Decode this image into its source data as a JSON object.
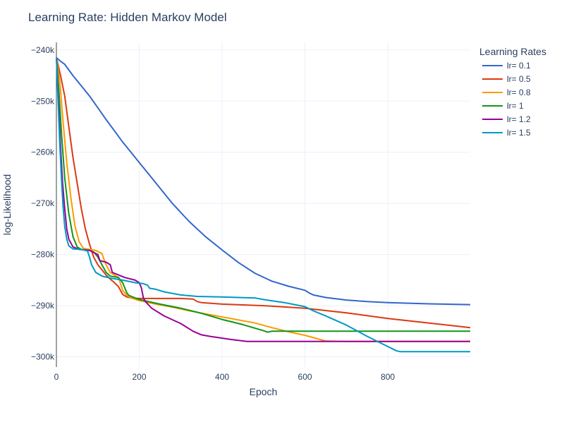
{
  "chart_data": {
    "type": "line",
    "title": "Learning Rate: Hidden Markov Model",
    "xlabel": "Epoch",
    "ylabel": "log-Likelihood",
    "xlim": [
      0,
      999
    ],
    "ylim": [
      -302000,
      -238500
    ],
    "x_ticks": [
      0,
      200,
      400,
      600,
      800
    ],
    "x_tick_labels": [
      "0",
      "200",
      "400",
      "600",
      "800"
    ],
    "y_ticks": [
      -240000,
      -250000,
      -260000,
      -270000,
      -280000,
      -290000,
      -300000
    ],
    "y_tick_labels": [
      "−240k",
      "−250k",
      "−260k",
      "−270k",
      "−280k",
      "−290k",
      "−300k"
    ],
    "grid": true,
    "legend": {
      "title": "Learning Rates",
      "position": "top-right-outside"
    },
    "series": [
      {
        "name": "lr= 0.1",
        "color": "#3366cc",
        "points": [
          [
            0,
            -241500
          ],
          [
            10,
            -242200
          ],
          [
            20,
            -242800
          ],
          [
            40,
            -245000
          ],
          [
            60,
            -247000
          ],
          [
            80,
            -249000
          ],
          [
            100,
            -251300
          ],
          [
            120,
            -253600
          ],
          [
            140,
            -255800
          ],
          [
            160,
            -258000
          ],
          [
            180,
            -260000
          ],
          [
            200,
            -262000
          ],
          [
            220,
            -264000
          ],
          [
            250,
            -267000
          ],
          [
            280,
            -270000
          ],
          [
            320,
            -273500
          ],
          [
            360,
            -276500
          ],
          [
            400,
            -279100
          ],
          [
            440,
            -281600
          ],
          [
            480,
            -283700
          ],
          [
            520,
            -285200
          ],
          [
            560,
            -286200
          ],
          [
            600,
            -287000
          ],
          [
            610,
            -287500
          ],
          [
            620,
            -287900
          ],
          [
            650,
            -288400
          ],
          [
            700,
            -288900
          ],
          [
            750,
            -289200
          ],
          [
            800,
            -289400
          ],
          [
            900,
            -289650
          ],
          [
            999,
            -289800
          ]
        ]
      },
      {
        "name": "lr= 0.5",
        "color": "#dc3912",
        "points": [
          [
            0,
            -241500
          ],
          [
            10,
            -245000
          ],
          [
            20,
            -249000
          ],
          [
            30,
            -255000
          ],
          [
            40,
            -261000
          ],
          [
            50,
            -266000
          ],
          [
            60,
            -271000
          ],
          [
            70,
            -275000
          ],
          [
            80,
            -278000
          ],
          [
            90,
            -280500
          ],
          [
            100,
            -282000
          ],
          [
            110,
            -283000
          ],
          [
            120,
            -284000
          ],
          [
            130,
            -284800
          ],
          [
            140,
            -285500
          ],
          [
            150,
            -286300
          ],
          [
            160,
            -287800
          ],
          [
            170,
            -288300
          ],
          [
            180,
            -288500
          ],
          [
            200,
            -288600
          ],
          [
            250,
            -288600
          ],
          [
            300,
            -288600
          ],
          [
            330,
            -288700
          ],
          [
            340,
            -289200
          ],
          [
            350,
            -289400
          ],
          [
            400,
            -289700
          ],
          [
            500,
            -290000
          ],
          [
            600,
            -290500
          ],
          [
            700,
            -291400
          ],
          [
            800,
            -292500
          ],
          [
            900,
            -293400
          ],
          [
            999,
            -294300
          ]
        ]
      },
      {
        "name": "lr= 0.8",
        "color": "#ff9900",
        "points": [
          [
            0,
            -241500
          ],
          [
            8,
            -246000
          ],
          [
            15,
            -253000
          ],
          [
            25,
            -262000
          ],
          [
            35,
            -269000
          ],
          [
            45,
            -274500
          ],
          [
            55,
            -277500
          ],
          [
            65,
            -278800
          ],
          [
            80,
            -279000
          ],
          [
            95,
            -279200
          ],
          [
            110,
            -279800
          ],
          [
            115,
            -281000
          ],
          [
            120,
            -282000
          ],
          [
            130,
            -283500
          ],
          [
            140,
            -284000
          ],
          [
            150,
            -284500
          ],
          [
            160,
            -287000
          ],
          [
            170,
            -288000
          ],
          [
            180,
            -288500
          ],
          [
            200,
            -289000
          ],
          [
            240,
            -289700
          ],
          [
            280,
            -290300
          ],
          [
            320,
            -291000
          ],
          [
            400,
            -292200
          ],
          [
            480,
            -293400
          ],
          [
            520,
            -294300
          ],
          [
            560,
            -295100
          ],
          [
            600,
            -295800
          ],
          [
            650,
            -296900
          ],
          [
            700,
            -297000
          ],
          [
            800,
            -297000
          ],
          [
            900,
            -297000
          ],
          [
            999,
            -297000
          ]
        ]
      },
      {
        "name": "lr= 1",
        "color": "#109618",
        "points": [
          [
            0,
            -241500
          ],
          [
            6,
            -248000
          ],
          [
            12,
            -256000
          ],
          [
            20,
            -265000
          ],
          [
            30,
            -272000
          ],
          [
            40,
            -276500
          ],
          [
            50,
            -278500
          ],
          [
            60,
            -279000
          ],
          [
            80,
            -279200
          ],
          [
            90,
            -279500
          ],
          [
            100,
            -280500
          ],
          [
            110,
            -282000
          ],
          [
            120,
            -283500
          ],
          [
            130,
            -284200
          ],
          [
            150,
            -284500
          ],
          [
            160,
            -285500
          ],
          [
            170,
            -287500
          ],
          [
            175,
            -288000
          ],
          [
            200,
            -288800
          ],
          [
            250,
            -289700
          ],
          [
            300,
            -290500
          ],
          [
            350,
            -291500
          ],
          [
            400,
            -292700
          ],
          [
            450,
            -293700
          ],
          [
            500,
            -294900
          ],
          [
            510,
            -295200
          ],
          [
            520,
            -295000
          ],
          [
            600,
            -295000
          ],
          [
            700,
            -295000
          ],
          [
            800,
            -295000
          ],
          [
            900,
            -295000
          ],
          [
            999,
            -295000
          ]
        ]
      },
      {
        "name": "lr= 1.2",
        "color": "#990099",
        "points": [
          [
            0,
            -241500
          ],
          [
            5,
            -250000
          ],
          [
            10,
            -259000
          ],
          [
            15,
            -266000
          ],
          [
            20,
            -271000
          ],
          [
            25,
            -275000
          ],
          [
            30,
            -277000
          ],
          [
            40,
            -278500
          ],
          [
            55,
            -279000
          ],
          [
            80,
            -279200
          ],
          [
            100,
            -280000
          ],
          [
            105,
            -281200
          ],
          [
            120,
            -281500
          ],
          [
            130,
            -282000
          ],
          [
            135,
            -283500
          ],
          [
            150,
            -284000
          ],
          [
            165,
            -284500
          ],
          [
            190,
            -285000
          ],
          [
            200,
            -285500
          ],
          [
            205,
            -286500
          ],
          [
            210,
            -288500
          ],
          [
            215,
            -289200
          ],
          [
            230,
            -290500
          ],
          [
            260,
            -292000
          ],
          [
            300,
            -293500
          ],
          [
            330,
            -295000
          ],
          [
            350,
            -295700
          ],
          [
            370,
            -296000
          ],
          [
            420,
            -296600
          ],
          [
            460,
            -297000
          ],
          [
            600,
            -297000
          ],
          [
            800,
            -297000
          ],
          [
            999,
            -297000
          ]
        ]
      },
      {
        "name": "lr= 1.5",
        "color": "#0099c6",
        "points": [
          [
            0,
            -241500
          ],
          [
            4,
            -250000
          ],
          [
            8,
            -258000
          ],
          [
            12,
            -265000
          ],
          [
            16,
            -270500
          ],
          [
            20,
            -274500
          ],
          [
            25,
            -277000
          ],
          [
            30,
            -278300
          ],
          [
            40,
            -278900
          ],
          [
            60,
            -279000
          ],
          [
            75,
            -279300
          ],
          [
            80,
            -280500
          ],
          [
            85,
            -282000
          ],
          [
            95,
            -283500
          ],
          [
            110,
            -284200
          ],
          [
            130,
            -284600
          ],
          [
            160,
            -285000
          ],
          [
            190,
            -285500
          ],
          [
            210,
            -285700
          ],
          [
            220,
            -286000
          ],
          [
            225,
            -286600
          ],
          [
            240,
            -286800
          ],
          [
            260,
            -287300
          ],
          [
            300,
            -287900
          ],
          [
            340,
            -288200
          ],
          [
            400,
            -288300
          ],
          [
            480,
            -288500
          ],
          [
            500,
            -288800
          ],
          [
            550,
            -289400
          ],
          [
            600,
            -290200
          ],
          [
            620,
            -291000
          ],
          [
            650,
            -292000
          ],
          [
            700,
            -293800
          ],
          [
            750,
            -296000
          ],
          [
            800,
            -298000
          ],
          [
            820,
            -298800
          ],
          [
            830,
            -299000
          ],
          [
            999,
            -299000
          ]
        ]
      }
    ]
  }
}
